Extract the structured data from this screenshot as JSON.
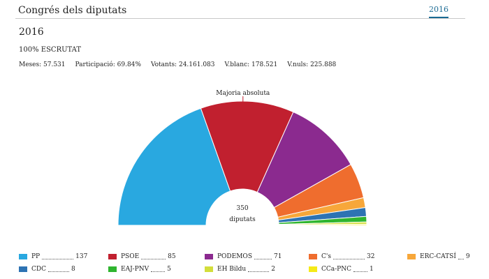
{
  "header": {
    "title": "Congrés dels diputats",
    "tab_label": "2016"
  },
  "year": "2016",
  "scrutiny": "100% ESCRUTAT",
  "stats": [
    {
      "label": "Meses:",
      "value": "57.531"
    },
    {
      "label": "Participació:",
      "value": "69.84%"
    },
    {
      "label": "Votants:",
      "value": "24.161.083"
    },
    {
      "label": "V.blanc:",
      "value": "178.521"
    },
    {
      "label": "V.nuls:",
      "value": "225.888"
    }
  ],
  "chart_data": {
    "type": "pie",
    "subtype": "parliament-half-donut",
    "total": 350,
    "center_value": "350",
    "center_label": "diputats",
    "majority_label": "Majoria absoluta",
    "majority_seats": 176,
    "parties": [
      {
        "name": "PP",
        "seats": 137,
        "color": "#29a8e0"
      },
      {
        "name": "PSOE",
        "seats": 85,
        "color": "#c1202f"
      },
      {
        "name": "PODEMOS",
        "seats": 71,
        "color": "#8b2a8f"
      },
      {
        "name": "C's",
        "seats": 32,
        "color": "#ef6d2e"
      },
      {
        "name": "ERC-CATSÍ",
        "seats": 9,
        "color": "#f7a73a"
      },
      {
        "name": "CDC",
        "seats": 8,
        "color": "#2d73b3"
      },
      {
        "name": "EAJ-PNV",
        "seats": 5,
        "color": "#2fb52f"
      },
      {
        "name": "EH Bildu",
        "seats": 2,
        "color": "#d3de3b"
      },
      {
        "name": "CCa-PNC",
        "seats": 1,
        "color": "#f5ea18"
      }
    ]
  }
}
